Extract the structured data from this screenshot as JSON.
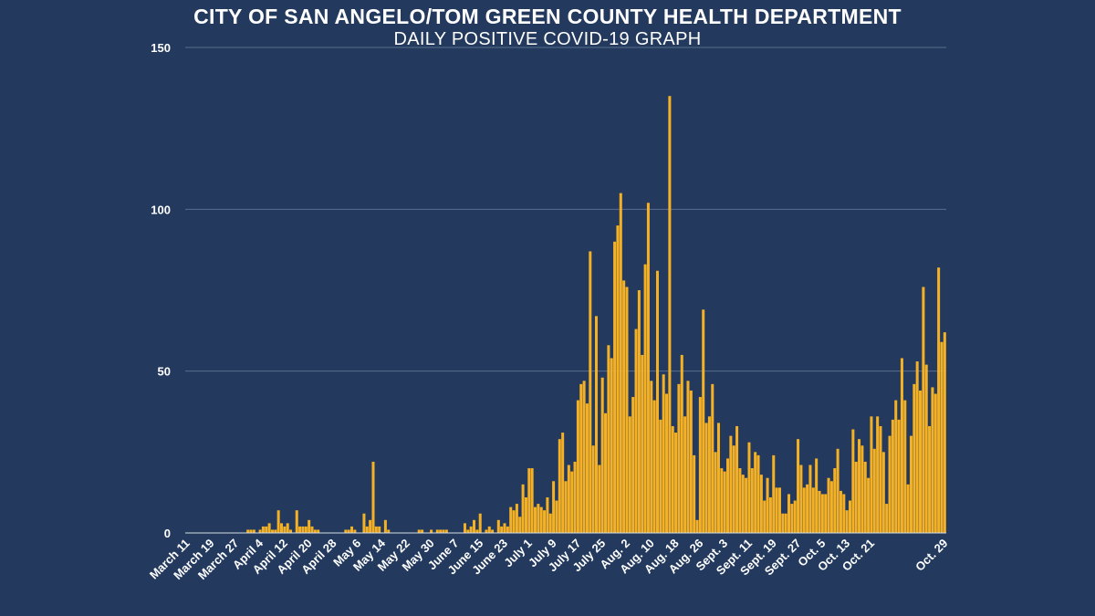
{
  "chart_data": {
    "type": "bar",
    "title": "CITY OF SAN ANGELO/TOM GREEN COUNTY HEALTH DEPARTMENT",
    "subtitle": "DAILY POSITIVE COVID-19 GRAPH",
    "xlabel": "",
    "ylabel": "",
    "ylim": [
      0,
      150
    ],
    "yticks": [
      0,
      50,
      100,
      150
    ],
    "grid": true,
    "bar_color": "#f5b125",
    "x_tick_labels": [
      "March 11",
      "March 19",
      "March 27",
      "April 4",
      "April 12",
      "April 20",
      "April 28",
      "May 6",
      "May 14",
      "May 22",
      "May 30",
      "June 7",
      "June 15",
      "June 23",
      "July 1",
      "July 9",
      "July 17",
      "July 25",
      "Aug. 2",
      "Aug. 10",
      "Aug. 18",
      "Aug. 26",
      "Sept. 3",
      "Sept. 11",
      "Sept. 19",
      "Sept. 27",
      "Oct. 5",
      "Oct. 13",
      "Oct. 21",
      "Oct. 29"
    ],
    "x_tick_every": 8,
    "first_date": "March 11",
    "last_date": "Oct. 29",
    "values": [
      0,
      0,
      0,
      0,
      0,
      0,
      0,
      0,
      0,
      0,
      0,
      0,
      0,
      0,
      0,
      0,
      0,
      0,
      0,
      0,
      1,
      1,
      1,
      0,
      1,
      2,
      2,
      3,
      1,
      1,
      7,
      3,
      2,
      3,
      1,
      0,
      7,
      2,
      2,
      2,
      4,
      2,
      1,
      1,
      0,
      0,
      0,
      0,
      0,
      0,
      0,
      0,
      1,
      1,
      2,
      1,
      0,
      0,
      6,
      2,
      4,
      22,
      2,
      2,
      0,
      4,
      1,
      0,
      0,
      0,
      0,
      0,
      0,
      0,
      0,
      0,
      1,
      1,
      0,
      0,
      1,
      0,
      1,
      1,
      1,
      1,
      0,
      0,
      0,
      0,
      0,
      3,
      1,
      2,
      4,
      1,
      6,
      0,
      1,
      2,
      1,
      0,
      4,
      2,
      3,
      2,
      8,
      7,
      9,
      5,
      15,
      11,
      20,
      20,
      8,
      9,
      8,
      7,
      11,
      6,
      16,
      10,
      29,
      31,
      16,
      21,
      19,
      22,
      41,
      46,
      47,
      40,
      87,
      27,
      67,
      21,
      48,
      37,
      58,
      54,
      90,
      95,
      105,
      78,
      76,
      36,
      42,
      63,
      75,
      55,
      83,
      102,
      47,
      41,
      81,
      35,
      49,
      43,
      135,
      33,
      31,
      46,
      55,
      36,
      47,
      44,
      24,
      4,
      42,
      69,
      34,
      36,
      46,
      25,
      34,
      20,
      19,
      23,
      30,
      27,
      33,
      20,
      18,
      17,
      28,
      20,
      25,
      24,
      18,
      10,
      17,
      11,
      24,
      14,
      14,
      6,
      6,
      12,
      9,
      10,
      29,
      21,
      14,
      15,
      21,
      14,
      23,
      13,
      12,
      12,
      17,
      16,
      20,
      26,
      13,
      12,
      7,
      10,
      32,
      22,
      29,
      27,
      22,
      17,
      36,
      26,
      36,
      33,
      25,
      9,
      30,
      35,
      41,
      35,
      54,
      41,
      15,
      30,
      46,
      53,
      44,
      76,
      52,
      33,
      45,
      43,
      82,
      59,
      62
    ]
  }
}
